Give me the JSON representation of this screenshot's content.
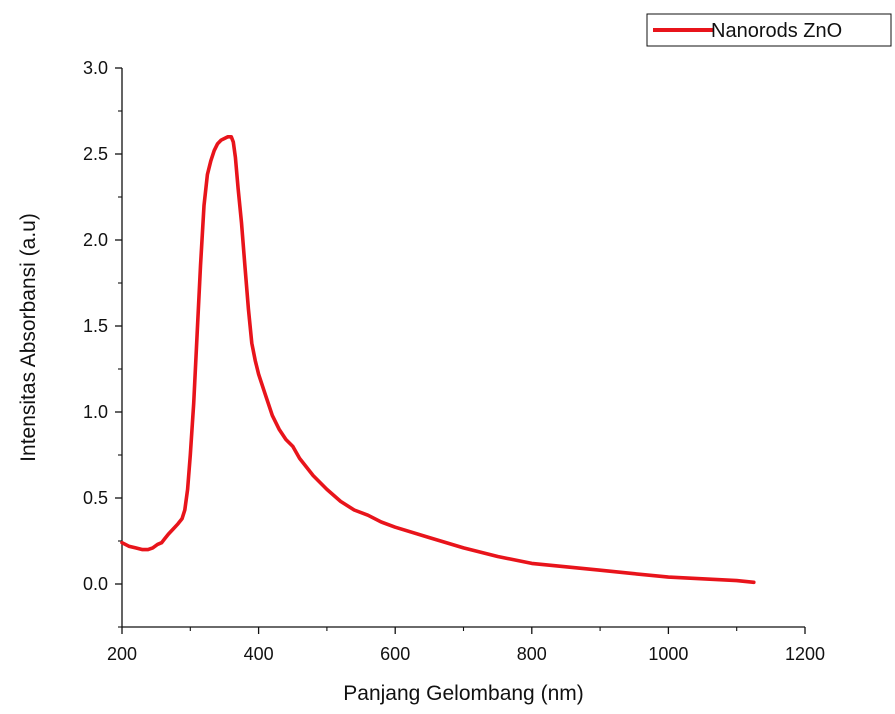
{
  "chart_data": {
    "type": "line",
    "title": "",
    "xlabel": "Panjang Gelombang (nm)",
    "ylabel": "Intensitas Absorbansi (a.u)",
    "xlim": [
      200,
      1200
    ],
    "ylim": [
      -0.25,
      3.0
    ],
    "xticks": [
      200,
      400,
      600,
      800,
      1000,
      1200
    ],
    "xtick_labels": [
      "200",
      "400",
      "600",
      "800",
      "1000",
      "1200"
    ],
    "yticks": [
      0.0,
      0.5,
      1.0,
      1.5,
      2.0,
      2.5,
      3.0
    ],
    "ytick_labels": [
      "0.0",
      "0.5",
      "1.0",
      "1.5",
      "2.0",
      "2.5",
      "3.0"
    ],
    "grid": false,
    "legend": {
      "position": "top-right"
    },
    "series": [
      {
        "name": "Nanorods ZnO",
        "color": "#e8141b",
        "x": [
          200,
          210,
          220,
          230,
          238,
          245,
          252,
          258,
          262,
          268,
          275,
          282,
          288,
          292,
          296,
          300,
          305,
          310,
          315,
          320,
          325,
          330,
          335,
          340,
          345,
          350,
          355,
          360,
          363,
          366,
          370,
          375,
          380,
          385,
          390,
          395,
          400,
          410,
          420,
          430,
          440,
          450,
          460,
          470,
          480,
          500,
          520,
          540,
          560,
          580,
          600,
          650,
          700,
          750,
          800,
          850,
          900,
          950,
          1000,
          1050,
          1100,
          1125
        ],
        "y": [
          0.24,
          0.22,
          0.21,
          0.2,
          0.2,
          0.21,
          0.23,
          0.24,
          0.26,
          0.29,
          0.32,
          0.35,
          0.38,
          0.43,
          0.55,
          0.75,
          1.05,
          1.45,
          1.85,
          2.2,
          2.38,
          2.46,
          2.52,
          2.56,
          2.58,
          2.59,
          2.6,
          2.6,
          2.57,
          2.48,
          2.3,
          2.1,
          1.85,
          1.6,
          1.4,
          1.3,
          1.22,
          1.1,
          0.98,
          0.9,
          0.84,
          0.8,
          0.73,
          0.68,
          0.63,
          0.55,
          0.48,
          0.43,
          0.4,
          0.36,
          0.33,
          0.27,
          0.21,
          0.16,
          0.12,
          0.1,
          0.08,
          0.06,
          0.04,
          0.03,
          0.02,
          0.01
        ]
      }
    ]
  }
}
